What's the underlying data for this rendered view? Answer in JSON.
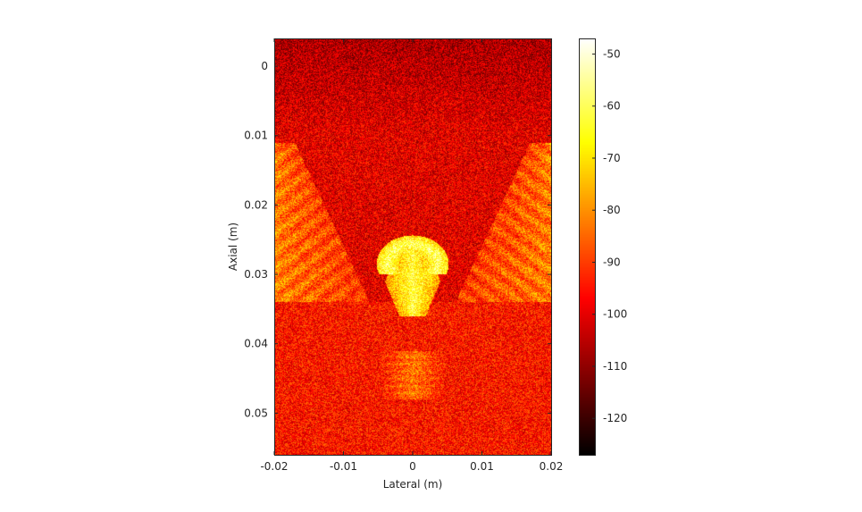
{
  "chart_data": {
    "type": "heatmap",
    "title": "",
    "xlabel": "Lateral (m)",
    "ylabel": "Axial (m)",
    "x_ticks": [
      -0.02,
      -0.01,
      0,
      0.01,
      0.02
    ],
    "x_tick_labels": [
      "-0.02",
      "-0.01",
      "0",
      "0.01",
      "0.02"
    ],
    "y_ticks": [
      0,
      0.01,
      0.02,
      0.03,
      0.04,
      0.05
    ],
    "y_tick_labels": [
      "0",
      "0.01",
      "0.02",
      "0.03",
      "0.04",
      "0.05"
    ],
    "xlim": [
      -0.02,
      0.02
    ],
    "ylim": [
      -0.004,
      0.056
    ],
    "y_reversed": true,
    "grid": false,
    "colormap": "hot",
    "colorbar": {
      "position": "right",
      "ticks": [
        -50,
        -60,
        -70,
        -80,
        -90,
        -100,
        -110,
        -120
      ],
      "tick_labels": [
        "-50",
        "-60",
        "-70",
        "-80",
        "-90",
        "-100",
        "-110",
        "-120"
      ],
      "clim": [
        -127,
        -47
      ]
    },
    "features": [
      {
        "kind": "near-field speckle",
        "axial_range": [
          -0.004,
          0.01
        ],
        "level_db": -107
      },
      {
        "kind": "background speckle",
        "axial_range": [
          0.01,
          0.034
        ],
        "level_db": -100
      },
      {
        "kind": "side lobe",
        "side": "left",
        "lateral_range": [
          -0.02,
          -0.008
        ],
        "axial_range": [
          0.011,
          0.034
        ],
        "level_db": -78
      },
      {
        "kind": "side lobe",
        "side": "right",
        "lateral_range": [
          0.008,
          0.02
        ],
        "axial_range": [
          0.011,
          0.034
        ],
        "level_db": -78
      },
      {
        "kind": "arc",
        "lateral_center": 0,
        "axial_center": 0.0285,
        "level_db": -58
      },
      {
        "kind": "central column",
        "lateral_center": 0,
        "axial_range": [
          0.026,
          0.036
        ],
        "level_db": -62
      },
      {
        "kind": "deep speckle",
        "axial_range": [
          0.034,
          0.056
        ],
        "level_db": -95
      },
      {
        "kind": "lower echo",
        "lateral_center": 0,
        "axial_range": [
          0.041,
          0.048
        ],
        "level_db": -80
      }
    ]
  }
}
